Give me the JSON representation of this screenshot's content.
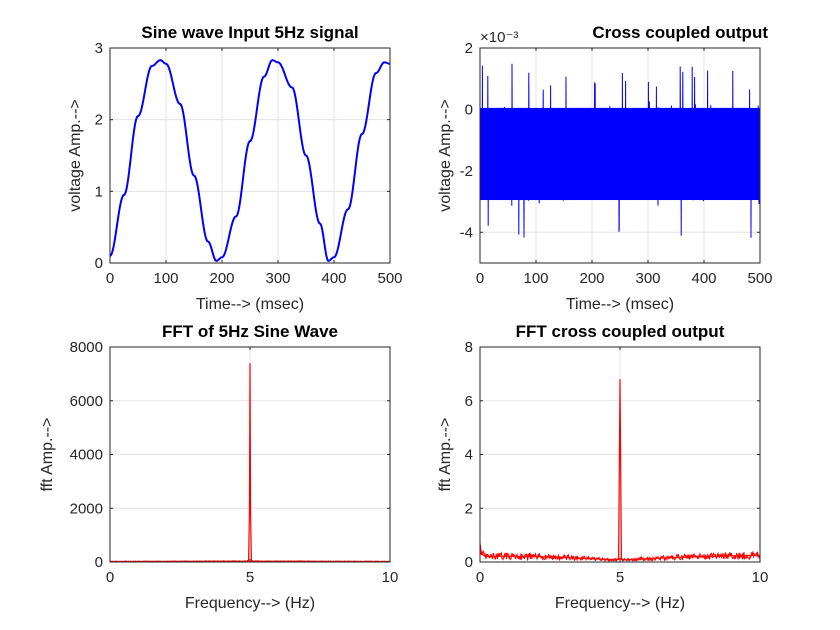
{
  "chart_data": [
    {
      "type": "line",
      "title": "Sine wave Input 5Hz signal",
      "xlabel": "Time--> (msec)",
      "ylabel": "voltage Amp.-->",
      "xlim": [
        0,
        500
      ],
      "ylim": [
        0,
        3
      ],
      "xticks": [
        "0",
        "100",
        "200",
        "300",
        "400",
        "500"
      ],
      "yticks": [
        "0",
        "1",
        "2",
        "3"
      ],
      "grid": true,
      "color": "#0000ff",
      "series": [
        {
          "x": [
            0,
            25,
            50,
            75,
            90,
            100,
            125,
            150,
            175,
            190,
            200,
            225,
            250,
            275,
            290,
            300,
            325,
            350,
            375,
            390,
            400,
            425,
            450,
            475,
            490,
            500
          ],
          "values": [
            0.1,
            0.95,
            2.05,
            2.75,
            2.83,
            2.78,
            2.22,
            1.22,
            0.3,
            0.03,
            0.08,
            0.65,
            1.7,
            2.6,
            2.83,
            2.8,
            2.45,
            1.5,
            0.55,
            0.03,
            0.08,
            0.75,
            1.8,
            2.65,
            2.8,
            2.78
          ]
        }
      ]
    },
    {
      "type": "line",
      "title": "Cross coupled output",
      "xlabel": "Time--> (msec)",
      "ylabel": "voltage Amp.-->",
      "xlim": [
        0,
        500
      ],
      "ylim": [
        -5,
        2
      ],
      "y_exponent": "×10⁻³",
      "xticks": [
        "0",
        "100",
        "200",
        "300",
        "400",
        "500"
      ],
      "yticks": [
        "2",
        "0",
        "-2",
        "-4"
      ],
      "grid": true,
      "color": "#0000ff",
      "noise": {
        "mean": -1.5,
        "band_low": -3.3,
        "band_high": 0.4,
        "min": -4.2,
        "max": 1.6
      }
    },
    {
      "type": "line",
      "title": "FFT of 5Hz Sine Wave",
      "xlabel": "Frequency--> (Hz)",
      "ylabel": "fft Amp.-->",
      "xlim": [
        0,
        10
      ],
      "ylim": [
        0,
        8000
      ],
      "xticks": [
        "0",
        "5",
        "10"
      ],
      "yticks": [
        "0",
        "2000",
        "4000",
        "6000",
        "8000"
      ],
      "grid": true,
      "color": "#ff0000",
      "series": [
        {
          "x": [
            0,
            4.9,
            4.95,
            4.98,
            5.0,
            5.02,
            5.05,
            5.1,
            10
          ],
          "values": [
            20,
            30,
            80,
            1900,
            7400,
            1900,
            80,
            30,
            20
          ]
        }
      ]
    },
    {
      "type": "line",
      "title": "FFT cross coupled output",
      "xlabel": "Frequency--> (Hz)",
      "ylabel": "fft Amp.-->",
      "xlim": [
        0,
        10
      ],
      "ylim": [
        0,
        8
      ],
      "xticks": [
        "0",
        "5",
        "10"
      ],
      "yticks": [
        "0",
        "2",
        "4",
        "6",
        "8"
      ],
      "grid": true,
      "color": "#ff0000",
      "series": [
        {
          "x": [
            0,
            0.05,
            0.2,
            1,
            2,
            3,
            4,
            4.8,
            4.95,
            5.0,
            5.05,
            5.2,
            6,
            7,
            8,
            9,
            10
          ],
          "values": [
            0.7,
            0.3,
            0.2,
            0.22,
            0.2,
            0.17,
            0.12,
            0.08,
            0.1,
            6.8,
            0.1,
            0.08,
            0.12,
            0.17,
            0.2,
            0.23,
            0.25
          ]
        }
      ]
    }
  ]
}
